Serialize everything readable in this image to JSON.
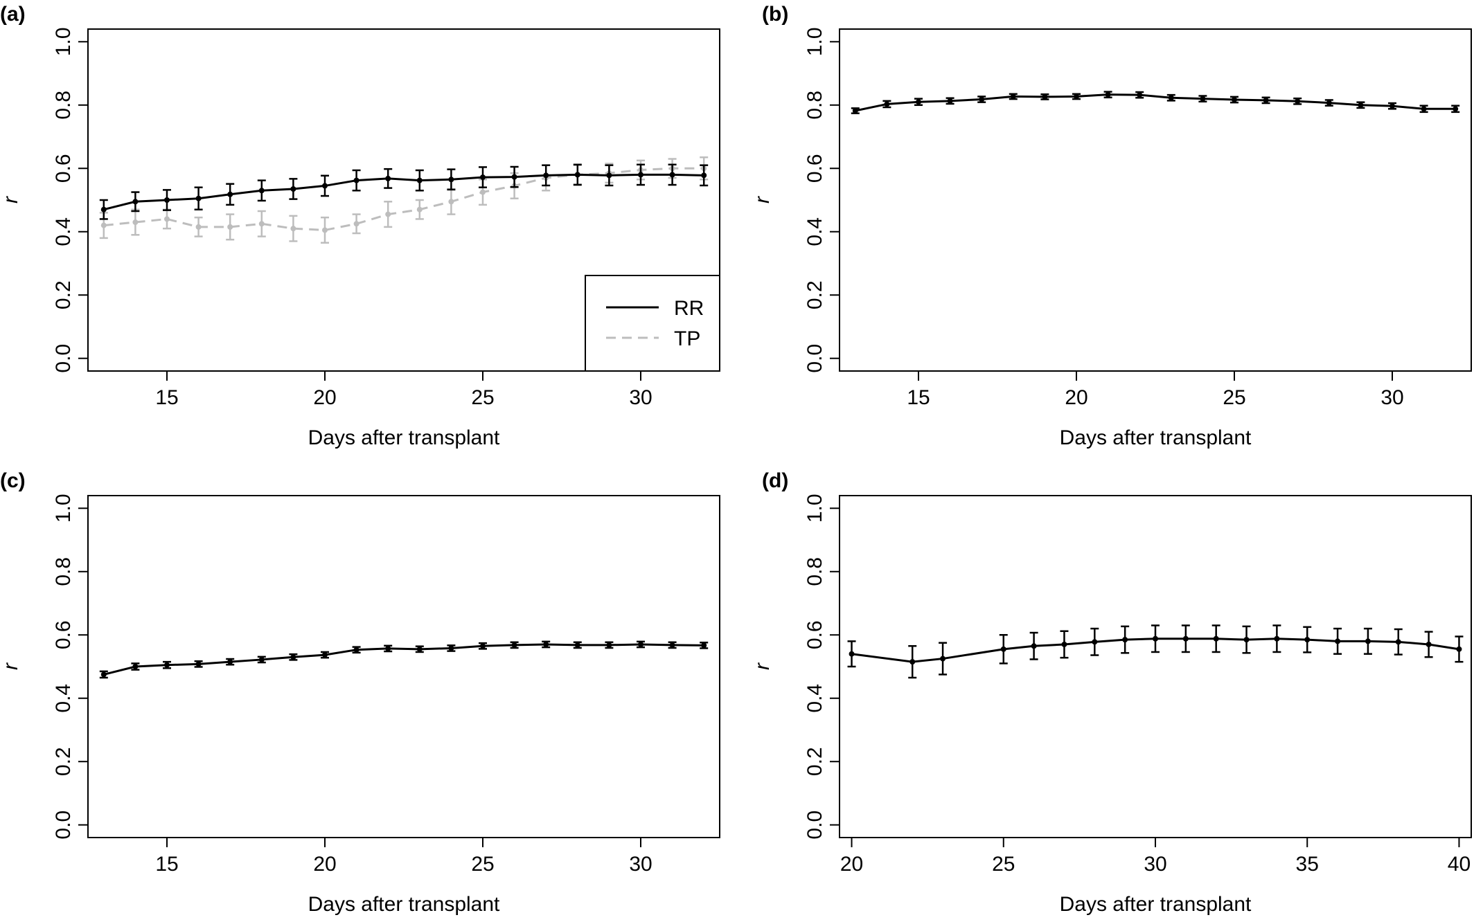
{
  "chart_data": [
    {
      "panel": "(a)",
      "type": "line",
      "xlabel": "Days after transplant",
      "ylabel": "r",
      "xlim": [
        12.5,
        32.5
      ],
      "ylim": [
        -0.04,
        1.04
      ],
      "xticks": [
        15,
        20,
        25,
        30
      ],
      "yticks": [
        0.0,
        0.2,
        0.4,
        0.6,
        0.8,
        1.0
      ],
      "legend": "bottom-right",
      "series": [
        {
          "name": "RR",
          "color": "#000000",
          "dash": "solid",
          "x": [
            13,
            14,
            15,
            16,
            17,
            18,
            19,
            20,
            21,
            22,
            23,
            24,
            25,
            26,
            27,
            28,
            29,
            30,
            31,
            32
          ],
          "values": [
            0.47,
            0.495,
            0.5,
            0.505,
            0.518,
            0.53,
            0.535,
            0.545,
            0.562,
            0.568,
            0.562,
            0.565,
            0.572,
            0.573,
            0.578,
            0.58,
            0.578,
            0.58,
            0.58,
            0.578
          ],
          "err": [
            0.03,
            0.03,
            0.032,
            0.035,
            0.033,
            0.032,
            0.032,
            0.032,
            0.032,
            0.03,
            0.032,
            0.032,
            0.032,
            0.032,
            0.032,
            0.032,
            0.032,
            0.032,
            0.032,
            0.032
          ]
        },
        {
          "name": "TP",
          "color": "#bdbdbd",
          "dash": "dashed",
          "x": [
            13,
            14,
            15,
            16,
            17,
            18,
            19,
            20,
            21,
            22,
            23,
            24,
            25,
            26,
            27,
            28,
            29,
            30,
            31,
            32
          ],
          "values": [
            0.42,
            0.43,
            0.44,
            0.415,
            0.415,
            0.425,
            0.41,
            0.405,
            0.425,
            0.455,
            0.47,
            0.495,
            0.525,
            0.545,
            0.57,
            0.58,
            0.585,
            0.595,
            0.6,
            0.6
          ],
          "err": [
            0.04,
            0.04,
            0.03,
            0.03,
            0.04,
            0.04,
            0.04,
            0.04,
            0.03,
            0.04,
            0.03,
            0.04,
            0.04,
            0.04,
            0.04,
            0.03,
            0.03,
            0.03,
            0.03,
            0.035
          ]
        }
      ]
    },
    {
      "panel": "(b)",
      "type": "line",
      "xlabel": "Days after transplant",
      "ylabel": "r",
      "xlim": [
        12.5,
        32.5
      ],
      "ylim": [
        -0.04,
        1.04
      ],
      "xticks": [
        15,
        20,
        25,
        30
      ],
      "yticks": [
        0.0,
        0.2,
        0.4,
        0.6,
        0.8,
        1.0
      ],
      "series": [
        {
          "color": "#000000",
          "dash": "solid",
          "x": [
            13,
            14,
            15,
            16,
            17,
            18,
            19,
            20,
            21,
            22,
            23,
            24,
            25,
            26,
            27,
            28,
            29,
            30,
            31,
            32
          ],
          "values": [
            0.782,
            0.803,
            0.81,
            0.813,
            0.818,
            0.827,
            0.826,
            0.827,
            0.833,
            0.832,
            0.823,
            0.82,
            0.817,
            0.815,
            0.812,
            0.807,
            0.8,
            0.797,
            0.788,
            0.788
          ],
          "err": [
            0.008,
            0.01,
            0.01,
            0.009,
            0.009,
            0.008,
            0.008,
            0.008,
            0.009,
            0.009,
            0.009,
            0.009,
            0.009,
            0.009,
            0.009,
            0.009,
            0.009,
            0.009,
            0.01,
            0.01
          ]
        }
      ]
    },
    {
      "panel": "(c)",
      "type": "line",
      "xlabel": "Days after transplant",
      "ylabel": "r",
      "xlim": [
        12.5,
        32.5
      ],
      "ylim": [
        -0.04,
        1.04
      ],
      "xticks": [
        15,
        20,
        25,
        30
      ],
      "yticks": [
        0.0,
        0.2,
        0.4,
        0.6,
        0.8,
        1.0
      ],
      "series": [
        {
          "color": "#000000",
          "dash": "solid",
          "x": [
            13,
            14,
            15,
            16,
            17,
            18,
            19,
            20,
            21,
            22,
            23,
            24,
            25,
            26,
            27,
            28,
            29,
            30,
            31,
            32
          ],
          "values": [
            0.475,
            0.5,
            0.505,
            0.508,
            0.515,
            0.522,
            0.53,
            0.537,
            0.553,
            0.557,
            0.555,
            0.558,
            0.565,
            0.568,
            0.57,
            0.568,
            0.568,
            0.57,
            0.568,
            0.567
          ],
          "err": [
            0.01,
            0.01,
            0.01,
            0.009,
            0.009,
            0.009,
            0.009,
            0.009,
            0.009,
            0.009,
            0.009,
            0.009,
            0.009,
            0.009,
            0.009,
            0.009,
            0.009,
            0.009,
            0.009,
            0.009
          ]
        }
      ]
    },
    {
      "panel": "(d)",
      "type": "line",
      "xlabel": "Days after transplant",
      "ylabel": "r",
      "xlim": [
        19.6,
        40.4
      ],
      "ylim": [
        -0.04,
        1.04
      ],
      "xticks": [
        20,
        25,
        30,
        35,
        40
      ],
      "yticks": [
        0.0,
        0.2,
        0.4,
        0.6,
        0.8,
        1.0
      ],
      "series": [
        {
          "color": "#000000",
          "dash": "solid",
          "x": [
            20,
            22,
            23,
            25,
            26,
            27,
            28,
            29,
            30,
            31,
            32,
            33,
            34,
            35,
            36,
            37,
            38,
            39,
            40
          ],
          "values": [
            0.54,
            0.515,
            0.525,
            0.555,
            0.565,
            0.57,
            0.578,
            0.585,
            0.588,
            0.588,
            0.588,
            0.585,
            0.588,
            0.585,
            0.58,
            0.58,
            0.578,
            0.57,
            0.555
          ],
          "err": [
            0.04,
            0.05,
            0.05,
            0.045,
            0.042,
            0.042,
            0.042,
            0.042,
            0.042,
            0.042,
            0.042,
            0.042,
            0.042,
            0.04,
            0.04,
            0.04,
            0.04,
            0.04,
            0.04
          ]
        }
      ]
    }
  ]
}
